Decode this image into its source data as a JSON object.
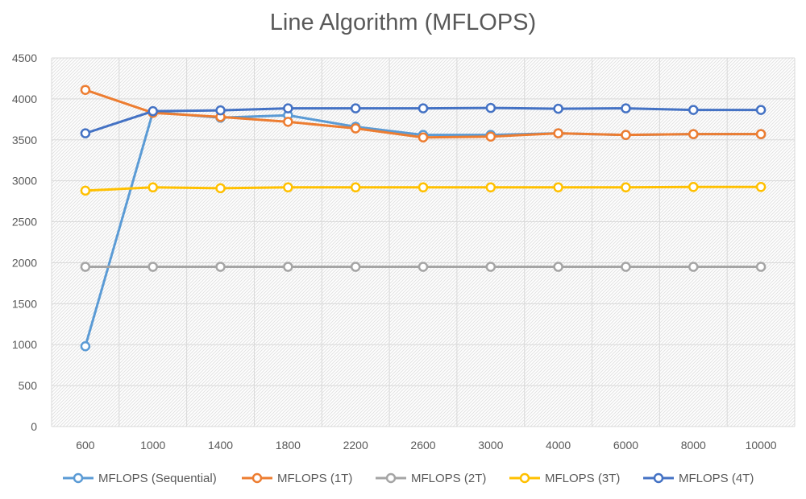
{
  "chart_data": {
    "type": "line",
    "title": "Line Algorithm (MFLOPS)",
    "xlabel": "",
    "ylabel": "",
    "categories": [
      "600",
      "1000",
      "1400",
      "1800",
      "2200",
      "2600",
      "3000",
      "4000",
      "6000",
      "8000",
      "10000"
    ],
    "ylim": [
      0,
      4500
    ],
    "yticks": [
      0,
      500,
      1000,
      1500,
      2000,
      2500,
      3000,
      3500,
      4000,
      4500
    ],
    "grid": true,
    "legend_position": "bottom",
    "series": [
      {
        "name": "MFLOPS (Sequential)",
        "color": "#5B9BD5",
        "values": [
          980,
          3840,
          3770,
          3800,
          3660,
          3560,
          3560,
          3580,
          3560,
          3570,
          3570
        ]
      },
      {
        "name": "MFLOPS (1T)",
        "color": "#ED7D31",
        "values": [
          4110,
          3830,
          3780,
          3720,
          3640,
          3530,
          3540,
          3580,
          3560,
          3570,
          3570
        ]
      },
      {
        "name": "MFLOPS (2T)",
        "color": "#A5A5A5",
        "values": [
          1950,
          1950,
          1950,
          1950,
          1950,
          1950,
          1950,
          1950,
          1950,
          1950,
          1950
        ]
      },
      {
        "name": "MFLOPS (3T)",
        "color": "#FFC000",
        "values": [
          2880,
          2920,
          2910,
          2920,
          2920,
          2920,
          2920,
          2920,
          2920,
          2925,
          2925
        ]
      },
      {
        "name": "MFLOPS (4T)",
        "color": "#4472C4",
        "values": [
          3580,
          3850,
          3860,
          3885,
          3885,
          3885,
          3890,
          3880,
          3885,
          3865,
          3865
        ]
      }
    ]
  }
}
